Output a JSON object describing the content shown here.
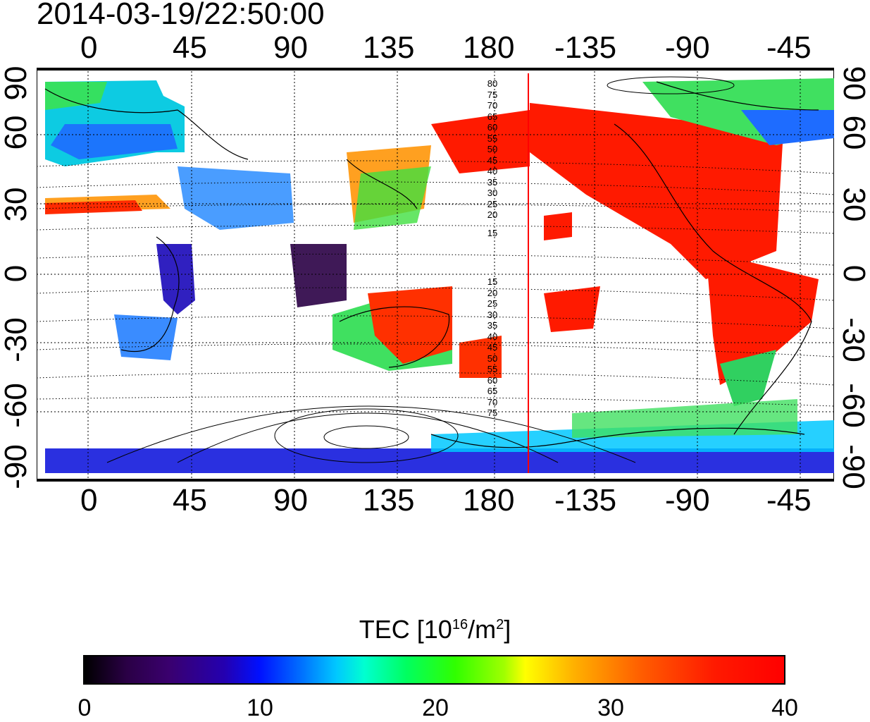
{
  "timestamp": "2014-03-19/22:50:00",
  "longitude_ticks": [
    "0",
    "45",
    "90",
    "135",
    "180",
    "-135",
    "-90",
    "-45"
  ],
  "latitude_ticks": [
    "90",
    "60",
    "30",
    "0",
    "-30",
    "-60",
    "-90"
  ],
  "contour_labels_north": [
    "80",
    "75",
    "70",
    "65",
    "60",
    "55",
    "50",
    "45",
    "40",
    "35",
    "30",
    "25",
    "20",
    "15"
  ],
  "contour_labels_south": [
    "15",
    "20",
    "25",
    "30",
    "35",
    "40",
    "45",
    "50",
    "55",
    "60",
    "65",
    "70",
    "75"
  ],
  "colorbar": {
    "title_prefix": "TEC  [10",
    "title_exp1": "16",
    "title_mid": "/m",
    "title_exp2": "2",
    "title_suffix": "]",
    "ticks": [
      "0",
      "10",
      "20",
      "30",
      "40"
    ],
    "range": [
      0,
      40
    ]
  },
  "colors": {
    "terminator_line": "#ff0000",
    "frame": "#000000"
  }
}
